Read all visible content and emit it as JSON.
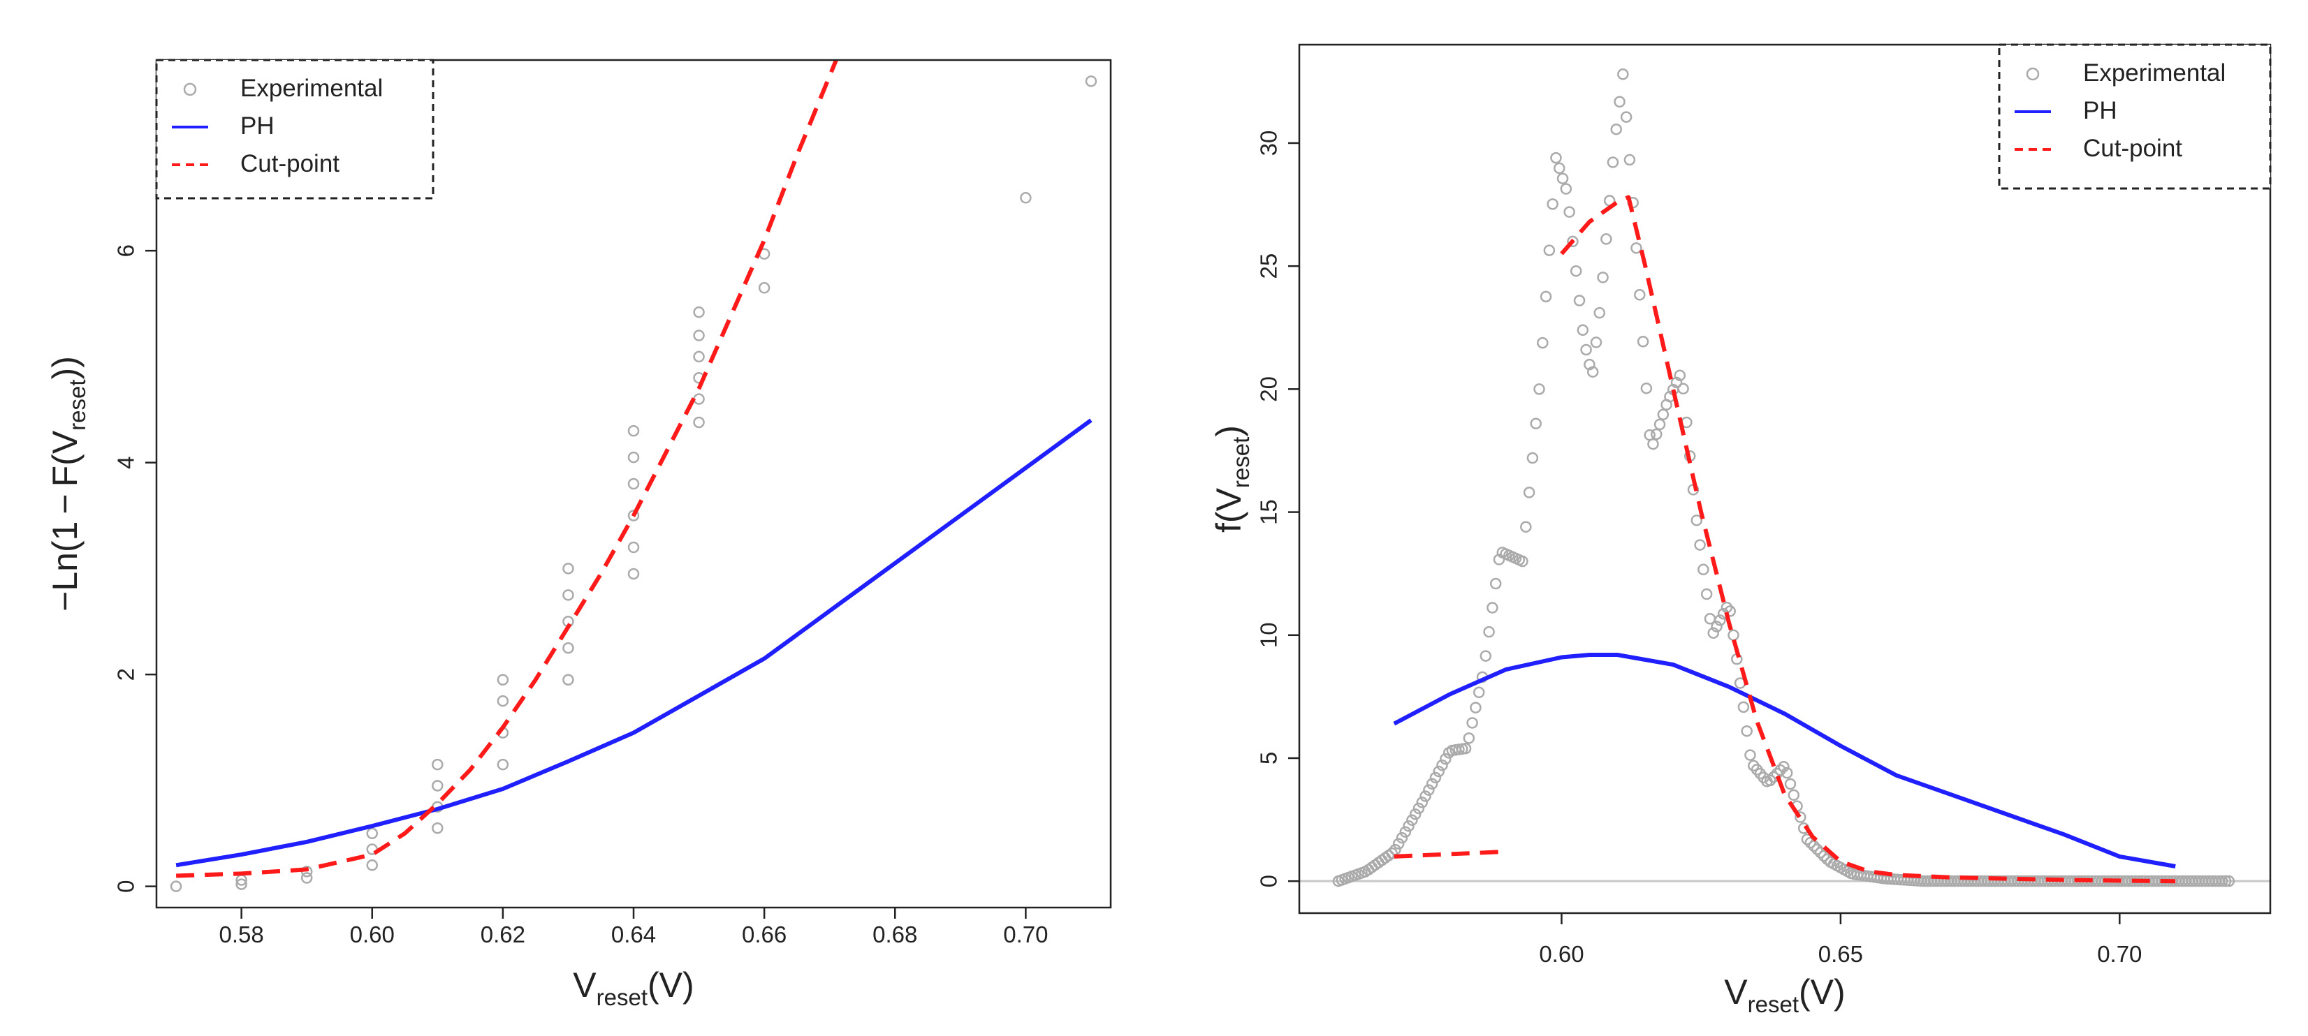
{
  "chart_data": [
    {
      "type": "line",
      "title": "",
      "xlabel": {
        "main": "V",
        "sub": "reset",
        "unit": "(V)"
      },
      "ylabel": {
        "prefix": "−Ln(1 − F(V",
        "sub": "reset",
        "suffix": "))"
      },
      "xlim": [
        0.567,
        0.713
      ],
      "ylim": [
        -0.2,
        7.8
      ],
      "xticks": [
        0.58,
        0.6,
        0.62,
        0.64,
        0.66,
        0.68,
        0.7
      ],
      "xtick_labels": [
        "0.58",
        "0.60",
        "0.62",
        "0.64",
        "0.66",
        "0.68",
        "0.70"
      ],
      "yticks": [
        0,
        2,
        4,
        6
      ],
      "ytick_labels": [
        "0",
        "2",
        "4",
        "6"
      ],
      "legend": {
        "position": "top-left",
        "entries": [
          {
            "label": "Experimental",
            "style": "circle",
            "color": "#aaaaaa"
          },
          {
            "label": "PH",
            "style": "solid",
            "color": "#1f1fff"
          },
          {
            "label": "Cut-point",
            "style": "dashed",
            "color": "#ff1a1a"
          }
        ]
      },
      "series": [
        {
          "name": "Experimental",
          "kind": "points",
          "color": "#aaaaaa",
          "x": [
            0.57,
            0.58,
            0.58,
            0.59,
            0.59,
            0.6,
            0.6,
            0.6,
            0.61,
            0.61,
            0.61,
            0.61,
            0.62,
            0.62,
            0.62,
            0.62,
            0.63,
            0.63,
            0.63,
            0.63,
            0.63,
            0.64,
            0.64,
            0.64,
            0.64,
            0.64,
            0.64,
            0.65,
            0.65,
            0.65,
            0.65,
            0.65,
            0.65,
            0.66,
            0.66,
            0.7,
            0.71
          ],
          "y": [
            0.0,
            0.02,
            0.06,
            0.08,
            0.14,
            0.2,
            0.35,
            0.5,
            0.55,
            0.75,
            0.95,
            1.15,
            1.15,
            1.45,
            1.75,
            1.95,
            1.95,
            2.25,
            2.5,
            2.75,
            3.0,
            2.95,
            3.2,
            3.5,
            3.8,
            4.05,
            4.3,
            4.38,
            4.6,
            4.8,
            5.0,
            5.2,
            5.42,
            5.65,
            5.97,
            6.5,
            7.6
          ]
        },
        {
          "name": "PH",
          "kind": "line",
          "color": "#1f1fff",
          "x": [
            0.57,
            0.58,
            0.59,
            0.6,
            0.61,
            0.62,
            0.63,
            0.64,
            0.65,
            0.66,
            0.67,
            0.68,
            0.69,
            0.7,
            0.71
          ],
          "y": [
            0.2,
            0.3,
            0.42,
            0.57,
            0.73,
            0.92,
            1.18,
            1.45,
            1.8,
            2.15,
            2.6,
            3.05,
            3.5,
            3.95,
            4.4
          ]
        },
        {
          "name": "Cut-point",
          "kind": "dashed",
          "color": "#ff1a1a",
          "x": [
            0.57,
            0.58,
            0.59,
            0.6,
            0.605,
            0.61,
            0.615,
            0.62,
            0.625,
            0.63,
            0.635,
            0.64,
            0.645,
            0.65,
            0.655,
            0.66,
            0.665,
            0.671
          ],
          "y": [
            0.1,
            0.12,
            0.16,
            0.3,
            0.5,
            0.78,
            1.1,
            1.5,
            1.95,
            2.45,
            2.95,
            3.5,
            4.1,
            4.7,
            5.4,
            6.1,
            6.9,
            7.8
          ]
        }
      ]
    },
    {
      "type": "line",
      "title": "",
      "xlabel": {
        "main": "V",
        "sub": "reset",
        "unit": "(V)"
      },
      "ylabel": {
        "prefix": "f(V",
        "sub": "reset",
        "suffix": ")"
      },
      "xlim": [
        0.553,
        0.727
      ],
      "ylim": [
        -1.3,
        34.0
      ],
      "xticks": [
        0.6,
        0.65,
        0.7
      ],
      "xtick_labels": [
        "0.60",
        "0.65",
        "0.70"
      ],
      "yticks": [
        0,
        5,
        10,
        15,
        20,
        25,
        30
      ],
      "ytick_labels": [
        "0",
        "5",
        "10",
        "15",
        "20",
        "25",
        "30"
      ],
      "hline": 0,
      "legend": {
        "position": "top-right",
        "entries": [
          {
            "label": "Experimental",
            "style": "circle",
            "color": "#aaaaaa"
          },
          {
            "label": "PH",
            "style": "solid",
            "color": "#1f1fff"
          },
          {
            "label": "Cut-point",
            "style": "dashed",
            "color": "#ff1a1a"
          }
        ]
      },
      "series": [
        {
          "name": "Experimental",
          "kind": "density-points",
          "color": "#aaaaaa",
          "x": [
            0.56,
            0.565,
            0.57,
            0.575,
            0.58,
            0.583,
            0.586,
            0.589,
            0.593,
            0.596,
            0.599,
            0.601,
            0.604,
            0.6055,
            0.607,
            0.6095,
            0.611,
            0.613,
            0.616,
            0.619,
            0.6215,
            0.624,
            0.627,
            0.63,
            0.634,
            0.637,
            0.64,
            0.644,
            0.648,
            0.652,
            0.658,
            0.665,
            0.68,
            0.7,
            0.72
          ],
          "y": [
            0.0,
            0.4,
            1.2,
            3.2,
            5.3,
            5.4,
            8.5,
            13.4,
            13.0,
            20.0,
            29.4,
            28.0,
            22.0,
            20.5,
            23.5,
            30.0,
            32.8,
            27.0,
            17.5,
            19.5,
            20.7,
            15.0,
            10.0,
            11.3,
            4.8,
            4.0,
            4.7,
            1.7,
            0.8,
            0.3,
            0.1,
            0.0,
            0.0,
            0.0,
            0.0
          ]
        },
        {
          "name": "PH",
          "kind": "line",
          "color": "#1f1fff",
          "x": [
            0.57,
            0.58,
            0.59,
            0.6,
            0.605,
            0.61,
            0.62,
            0.63,
            0.64,
            0.65,
            0.66,
            0.67,
            0.68,
            0.69,
            0.7,
            0.71
          ],
          "y": [
            6.4,
            7.6,
            8.6,
            9.1,
            9.2,
            9.2,
            8.8,
            7.9,
            6.8,
            5.5,
            4.3,
            3.5,
            2.7,
            1.9,
            1.0,
            0.6
          ]
        },
        {
          "name": "Cut-point",
          "kind": "dashed",
          "color": "#ff1a1a",
          "segments": [
            {
              "x": [
                0.57,
                0.575,
                0.58,
                0.585,
                0.59
              ],
              "y": [
                1.0,
                1.05,
                1.1,
                1.15,
                1.2
              ]
            },
            {
              "x": [
                0.6,
                0.605,
                0.61,
                0.612,
                0.615,
                0.62,
                0.625,
                0.63,
                0.635,
                0.64,
                0.645,
                0.65,
                0.655,
                0.66,
                0.67,
                0.68,
                0.69,
                0.7,
                0.71
              ],
              "y": [
                25.5,
                26.8,
                27.6,
                27.8,
                25.0,
                20.0,
                15.0,
                10.5,
                6.5,
                3.5,
                1.8,
                0.8,
                0.4,
                0.25,
                0.15,
                0.1,
                0.05,
                0.02,
                0.0
              ]
            }
          ]
        }
      ]
    }
  ]
}
